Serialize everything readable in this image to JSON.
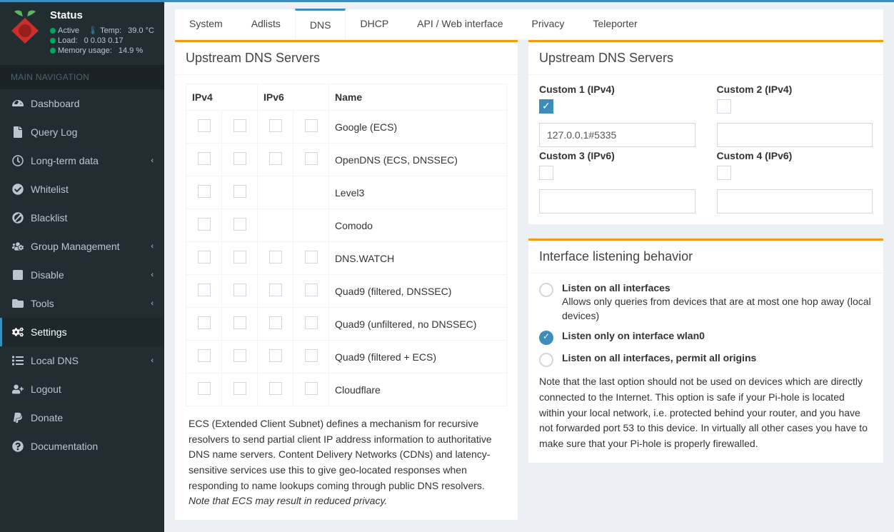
{
  "status": {
    "title": "Status",
    "active_label": "Active",
    "temp_label": "Temp:",
    "temp_value": "39.0 °C",
    "load_label": "Load:",
    "load_value": "0  0.03  0.17",
    "mem_label": "Memory usage:",
    "mem_value": "14.9 %"
  },
  "nav_header": "MAIN NAVIGATION",
  "nav": [
    {
      "label": "Dashboard",
      "icon": "tachometer",
      "chev": false
    },
    {
      "label": "Query Log",
      "icon": "file",
      "chev": false
    },
    {
      "label": "Long-term data",
      "icon": "clock",
      "chev": true
    },
    {
      "label": "Whitelist",
      "icon": "check-circle",
      "chev": false
    },
    {
      "label": "Blacklist",
      "icon": "ban",
      "chev": false
    },
    {
      "label": "Group Management",
      "icon": "users-cog",
      "chev": true
    },
    {
      "label": "Disable",
      "icon": "stop",
      "chev": true
    },
    {
      "label": "Tools",
      "icon": "folder",
      "chev": true
    },
    {
      "label": "Settings",
      "icon": "cogs",
      "chev": false,
      "active": true
    },
    {
      "label": "Local DNS",
      "icon": "list",
      "chev": true
    },
    {
      "label": "Logout",
      "icon": "logout",
      "chev": false
    },
    {
      "label": "Donate",
      "icon": "paypal",
      "chev": false
    },
    {
      "label": "Documentation",
      "icon": "question",
      "chev": false
    }
  ],
  "tabs": [
    "System",
    "Adlists",
    "DNS",
    "DHCP",
    "API / Web interface",
    "Privacy",
    "Teleporter"
  ],
  "active_tab": 2,
  "upstream_left": {
    "title": "Upstream DNS Servers",
    "headers": {
      "v4": "IPv4",
      "v6": "IPv6",
      "name": "Name"
    },
    "rows": [
      {
        "name": "Google (ECS)",
        "v4": 2,
        "v6": 2
      },
      {
        "name": "OpenDNS (ECS, DNSSEC)",
        "v4": 2,
        "v6": 2
      },
      {
        "name": "Level3",
        "v4": 2,
        "v6": 0
      },
      {
        "name": "Comodo",
        "v4": 2,
        "v6": 0
      },
      {
        "name": "DNS.WATCH",
        "v4": 2,
        "v6": 2
      },
      {
        "name": "Quad9 (filtered, DNSSEC)",
        "v4": 2,
        "v6": 2
      },
      {
        "name": "Quad9 (unfiltered, no DNSSEC)",
        "v4": 2,
        "v6": 2
      },
      {
        "name": "Quad9 (filtered + ECS)",
        "v4": 2,
        "v6": 2
      },
      {
        "name": "Cloudflare",
        "v4": 2,
        "v6": 2
      }
    ],
    "ecs_text": "ECS (Extended Client Subnet) defines a mechanism for recursive resolvers to send partial client IP address information to authoritative DNS name servers. Content Delivery Networks (CDNs) and latency-sensitive services use this to give geo-located responses when responding to name lookups coming through public DNS resolvers. ",
    "ecs_note": "Note that ECS may result in reduced privacy."
  },
  "upstream_right": {
    "title": "Upstream DNS Servers",
    "custom": [
      {
        "label": "Custom 1 (IPv4)",
        "checked": true,
        "value": "127.0.0.1#5335"
      },
      {
        "label": "Custom 2 (IPv4)",
        "checked": false,
        "value": ""
      },
      {
        "label": "Custom 3 (IPv6)",
        "checked": false,
        "value": ""
      },
      {
        "label": "Custom 4 (IPv6)",
        "checked": false,
        "value": ""
      }
    ]
  },
  "interface": {
    "title": "Interface listening behavior",
    "options": [
      {
        "label": "Listen on all interfaces",
        "desc": "Allows only queries from devices that are at most one hop away (local devices)",
        "checked": false
      },
      {
        "label": "Listen only on interface wlan0",
        "desc": "",
        "checked": true
      },
      {
        "label": "Listen on all interfaces, permit all origins",
        "desc": "",
        "checked": false
      }
    ],
    "note": "Note that the last option should not be used on devices which are directly connected to the Internet. This option is safe if your Pi-hole is located within your local network, i.e. protected behind your router, and you have not forwarded port 53 to this device. In virtually all other cases you have to make sure that your Pi-hole is properly firewalled."
  }
}
